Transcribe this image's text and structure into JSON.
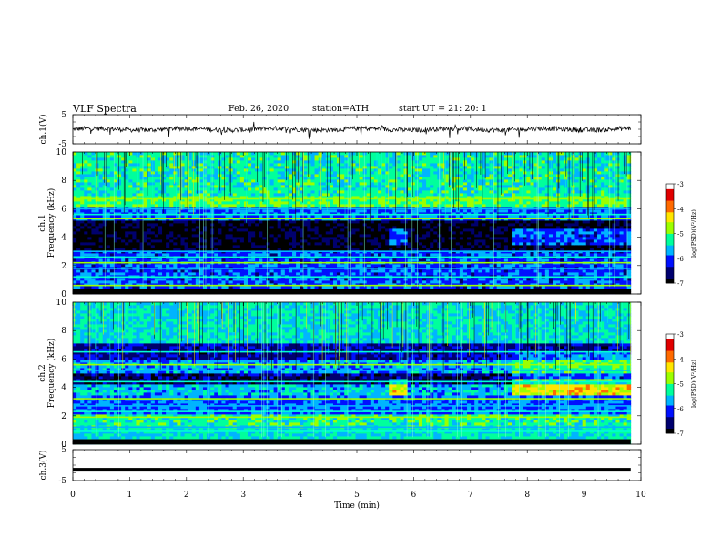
{
  "header": {
    "title": "VLF Spectra",
    "date": "Feb. 26, 2020",
    "station": "station=ATH",
    "start": "start  UT  =   21: 20: 1"
  },
  "chart_data": [
    {
      "type": "line",
      "id": "ch1-waveform",
      "ylabel": "ch.1(V)",
      "ylim": [
        -5,
        5
      ],
      "yticks": [
        "5",
        "-5"
      ],
      "xlim": [
        0,
        10
      ],
      "description_values": "noisy signal centered near 0 V, spikes to about +2/-3 V",
      "color": "#000000"
    },
    {
      "type": "heatmap",
      "id": "ch1-spectrogram",
      "ylabel": "Frequency (kHz)",
      "ylabel_prefix": "ch.1",
      "ylim": [
        0,
        10
      ],
      "yticks": [
        "0",
        "2",
        "4",
        "6",
        "8",
        "10"
      ],
      "xlim": [
        0,
        10
      ],
      "colorbar": {
        "label": "log(PSD)(V²/Hz)",
        "ticks": [
          "-3",
          "-4",
          "-5",
          "-6",
          "-7"
        ],
        "range": [
          -7,
          -3
        ]
      },
      "bands": [
        {
          "from": 0.0,
          "to": 0.3,
          "level": -7
        },
        {
          "from": 0.3,
          "to": 3.1,
          "level": -6.0
        },
        {
          "from": 3.1,
          "to": 5.2,
          "level": -6.9
        },
        {
          "from": 5.2,
          "to": 6.2,
          "level": -5.9
        },
        {
          "from": 6.2,
          "to": 6.9,
          "level": -5.0
        },
        {
          "from": 6.9,
          "to": 10.0,
          "level": -5.3
        }
      ]
    },
    {
      "type": "heatmap",
      "id": "ch2-spectrogram",
      "ylabel": "Frequency (kHz)",
      "ylabel_prefix": "ch.2",
      "ylim": [
        0,
        10
      ],
      "yticks": [
        "0",
        "2",
        "4",
        "6",
        "8",
        "10"
      ],
      "xlim": [
        0,
        10
      ],
      "colorbar": {
        "label": "log(PSD)(V²/Hz)",
        "ticks": [
          "-3",
          "-4",
          "-5",
          "-6",
          "-7"
        ],
        "range": [
          -7,
          -3
        ]
      },
      "bands": [
        {
          "from": 0.0,
          "to": 1.2,
          "level": -5.4
        },
        {
          "from": 1.2,
          "to": 2.2,
          "level": -5.2
        },
        {
          "from": 2.2,
          "to": 3.5,
          "level": -5.9
        },
        {
          "from": 3.5,
          "to": 4.2,
          "level": -5.6
        },
        {
          "from": 4.2,
          "to": 5.0,
          "level": -6.6
        },
        {
          "from": 5.0,
          "to": 6.0,
          "level": -5.7
        },
        {
          "from": 6.0,
          "to": 7.2,
          "level": -6.4
        },
        {
          "from": 7.2,
          "to": 10.0,
          "level": -5.4
        }
      ]
    },
    {
      "type": "line",
      "id": "ch3-waveform",
      "ylabel": "ch.3(V)",
      "ylim": [
        -5,
        5
      ],
      "yticks": [
        "5",
        "-5"
      ],
      "xlim": [
        0,
        10
      ],
      "value": -1.5,
      "color": "#000000"
    }
  ],
  "xaxis": {
    "label": "Time  (min)",
    "ticks": [
      "0",
      "1",
      "2",
      "3",
      "4",
      "5",
      "6",
      "7",
      "8",
      "9",
      "10"
    ],
    "range": [
      0,
      10
    ]
  },
  "colors": {
    "cmap": [
      "#000000",
      "#00006e",
      "#0010ff",
      "#00b4ff",
      "#00ff9c",
      "#9cff00",
      "#ffe600",
      "#ff6a00",
      "#e00000",
      "#ffffff"
    ]
  }
}
